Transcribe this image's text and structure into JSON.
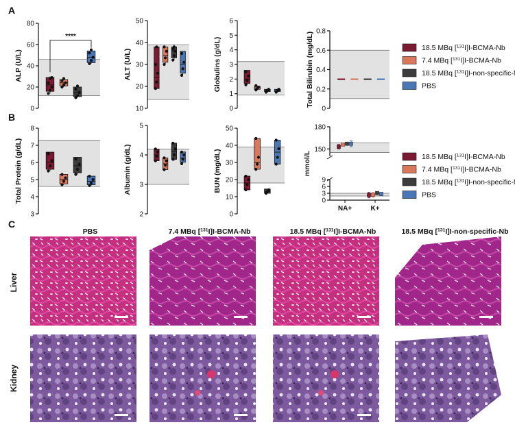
{
  "panel_letters": [
    "A",
    "B",
    "C"
  ],
  "colors": {
    "bcma_18_5": "#7b1a33",
    "bcma_7_4": "#d9785b",
    "nonspecific": "#3c3c3c",
    "pbs": "#4a77b5",
    "reference_band": "#e2e2e2",
    "sig_marker": "#111111"
  },
  "legend_row1": [
    {
      "key": "bcma_18_5",
      "prefix": "18.5 MBq [",
      "sup": "131",
      "suffix": "I]I-BCMA-Nb"
    },
    {
      "key": "bcma_7_4",
      "prefix": "7.4 MBq [",
      "sup": "131",
      "suffix": "I]I-BCMA-Nb"
    },
    {
      "key": "nonspecific",
      "prefix": "18.5 MBq [",
      "sup": "131",
      "suffix": "I]I-non-specific-Nb"
    },
    {
      "key": "pbs",
      "prefix": "PBS",
      "sup": "",
      "suffix": ""
    }
  ],
  "legend_row2": [
    {
      "key": "bcma_18_5",
      "prefix": "18.5 MBq [",
      "sup": "131",
      "suffix": "I]I-BCMA-Nb"
    },
    {
      "key": "bcma_7_4",
      "prefix": "7.4 MBq [",
      "sup": "131",
      "suffix": "I]I-BCMA-Nb"
    },
    {
      "key": "nonspecific",
      "prefix": "18.5 MBq [",
      "sup": "131",
      "suffix": "I]I-non-specific-Nb"
    },
    {
      "key": "pbs",
      "prefix": "PBS",
      "sup": "",
      "suffix": ""
    }
  ],
  "chart_data": [
    {
      "id": "alp",
      "type": "box",
      "ylabel": "ALP (U/L)",
      "ylim": [
        0,
        80
      ],
      "yticks": [
        0,
        20,
        40,
        60,
        80
      ],
      "reference_range": [
        12,
        46
      ],
      "significance": {
        "label": "****",
        "between": [
          0,
          3
        ]
      },
      "series": [
        {
          "key": "bcma_18_5",
          "min": 14,
          "q1": 16,
          "median": 22,
          "q3": 29,
          "max": 30,
          "points": [
            14,
            17,
            20,
            24,
            28,
            29
          ]
        },
        {
          "key": "bcma_7_4",
          "min": 20,
          "q1": 21,
          "median": 24,
          "q3": 27,
          "max": 28,
          "points": [
            20,
            22,
            24,
            26,
            28
          ]
        },
        {
          "key": "nonspecific",
          "min": 10,
          "q1": 11,
          "median": 15,
          "q3": 20,
          "max": 22,
          "points": [
            10,
            12,
            15,
            18,
            21
          ]
        },
        {
          "key": "pbs",
          "min": 42,
          "q1": 43,
          "median": 48,
          "q3": 54,
          "max": 55,
          "points": [
            42,
            45,
            48,
            52,
            55
          ]
        }
      ]
    },
    {
      "id": "alt",
      "type": "box",
      "ylabel": "ALT (U/L)",
      "ylim": [
        10,
        50
      ],
      "yticks": [
        10,
        20,
        30,
        40,
        50
      ],
      "reference_range": [
        14,
        39
      ],
      "series": [
        {
          "key": "bcma_18_5",
          "min": 19,
          "q1": 19,
          "median": 24,
          "q3": 38,
          "max": 38,
          "points": [
            19,
            22,
            26,
            30,
            38
          ]
        },
        {
          "key": "bcma_7_4",
          "min": 30,
          "q1": 31,
          "median": 34,
          "q3": 38,
          "max": 38,
          "points": [
            30,
            33,
            36,
            38
          ]
        },
        {
          "key": "nonspecific",
          "min": 32,
          "q1": 33,
          "median": 36,
          "q3": 38,
          "max": 39,
          "points": [
            32,
            34,
            36,
            37,
            38
          ]
        },
        {
          "key": "pbs",
          "min": 25,
          "q1": 26,
          "median": 30,
          "q3": 36,
          "max": 36,
          "points": [
            25,
            28,
            31,
            35
          ]
        }
      ]
    },
    {
      "id": "glob",
      "type": "box",
      "ylabel": "Globulins (g/dL)",
      "ylim": [
        0,
        6
      ],
      "yticks": [
        0,
        1,
        2,
        3,
        4,
        5,
        6
      ],
      "reference_range": [
        0.9,
        3.2
      ],
      "series": [
        {
          "key": "bcma_18_5",
          "min": 1.6,
          "q1": 1.7,
          "median": 2.0,
          "q3": 2.6,
          "max": 2.6,
          "points": [
            1.6,
            1.9,
            2.2,
            2.5
          ]
        },
        {
          "key": "bcma_7_4",
          "min": 1.25,
          "q1": 1.3,
          "median": 1.4,
          "q3": 1.5,
          "max": 1.55,
          "points": [
            1.25,
            1.35,
            1.45,
            1.55
          ]
        },
        {
          "key": "nonspecific",
          "min": 1.1,
          "q1": 1.15,
          "median": 1.2,
          "q3": 1.3,
          "max": 1.3,
          "points": [
            1.1,
            1.2,
            1.3
          ]
        },
        {
          "key": "pbs",
          "min": 1.1,
          "q1": 1.15,
          "median": 1.2,
          "q3": 1.3,
          "max": 1.3,
          "points": [
            1.1,
            1.2,
            1.3
          ]
        }
      ]
    },
    {
      "id": "bili",
      "type": "box",
      "ylabel": "Total Bilirubin (mg/dL)",
      "ylim": [
        0,
        0.8
      ],
      "yticks": [
        0,
        0.2,
        0.4,
        0.6,
        0.8
      ],
      "reference_range": [
        0.1,
        0.6
      ],
      "series": [
        {
          "key": "bcma_18_5",
          "min": 0.3,
          "q1": 0.3,
          "median": 0.3,
          "q3": 0.3,
          "max": 0.3,
          "points": []
        },
        {
          "key": "bcma_7_4",
          "min": 0.3,
          "q1": 0.3,
          "median": 0.3,
          "q3": 0.3,
          "max": 0.3,
          "points": []
        },
        {
          "key": "nonspecific",
          "min": 0.3,
          "q1": 0.3,
          "median": 0.3,
          "q3": 0.3,
          "max": 0.3,
          "points": []
        },
        {
          "key": "pbs",
          "min": 0.3,
          "q1": 0.3,
          "median": 0.3,
          "q3": 0.3,
          "max": 0.3,
          "points": []
        }
      ]
    },
    {
      "id": "tp",
      "type": "box",
      "ylabel": "Total Protein (g/dL)",
      "ylim": [
        3,
        8
      ],
      "yticks": [
        3,
        4,
        5,
        6,
        7,
        8
      ],
      "reference_range": [
        4.6,
        7.3
      ],
      "series": [
        {
          "key": "bcma_18_5",
          "min": 5.5,
          "q1": 5.6,
          "median": 6.0,
          "q3": 6.6,
          "max": 6.6,
          "points": [
            5.5,
            5.8,
            6.1,
            6.5
          ]
        },
        {
          "key": "bcma_7_4",
          "min": 4.7,
          "q1": 4.75,
          "median": 5.0,
          "q3": 5.3,
          "max": 5.3,
          "points": [
            4.7,
            4.9,
            5.1,
            5.3
          ]
        },
        {
          "key": "nonspecific",
          "min": 5.3,
          "q1": 5.4,
          "median": 5.8,
          "q3": 6.3,
          "max": 6.3,
          "points": [
            5.3,
            5.6,
            5.9,
            6.2
          ]
        },
        {
          "key": "pbs",
          "min": 4.65,
          "q1": 4.7,
          "median": 4.9,
          "q3": 5.2,
          "max": 5.2,
          "points": [
            4.65,
            4.8,
            5.0,
            5.2
          ]
        }
      ]
    },
    {
      "id": "alb",
      "type": "box",
      "ylabel": "Albumin (g/dL)",
      "ylim": [
        2,
        5
      ],
      "yticks": [
        2,
        3,
        4,
        5
      ],
      "reference_range": [
        3.0,
        4.2
      ],
      "series": [
        {
          "key": "bcma_18_5",
          "min": 3.8,
          "q1": 3.8,
          "median": 4.0,
          "q3": 4.2,
          "max": 4.2,
          "points": [
            3.8,
            3.95,
            4.1,
            4.2
          ]
        },
        {
          "key": "bcma_7_4",
          "min": 3.5,
          "q1": 3.5,
          "median": 3.7,
          "q3": 3.9,
          "max": 3.9,
          "points": [
            3.5,
            3.65,
            3.8,
            3.9
          ]
        },
        {
          "key": "nonspecific",
          "min": 3.8,
          "q1": 3.85,
          "median": 4.1,
          "q3": 4.4,
          "max": 4.4,
          "points": [
            3.85,
            4.0,
            4.2,
            4.4
          ]
        },
        {
          "key": "pbs",
          "min": 3.7,
          "q1": 3.75,
          "median": 3.9,
          "q3": 4.1,
          "max": 4.1,
          "points": [
            3.7,
            3.85,
            4.0,
            4.1
          ]
        }
      ]
    },
    {
      "id": "bun",
      "type": "box",
      "ylabel": "BUN (mg/dL)",
      "ylim": [
        0,
        50
      ],
      "yticks": [
        0,
        10,
        20,
        30,
        40,
        50
      ],
      "reference_range": [
        18,
        39
      ],
      "series": [
        {
          "key": "bcma_18_5",
          "min": 14,
          "q1": 14,
          "median": 18,
          "q3": 22,
          "max": 22,
          "points": [
            14,
            17,
            20,
            22
          ]
        },
        {
          "key": "bcma_7_4",
          "min": 26,
          "q1": 26,
          "median": 30,
          "q3": 44,
          "max": 44,
          "points": [
            26,
            29,
            33,
            44
          ]
        },
        {
          "key": "nonspecific",
          "min": 12,
          "q1": 12,
          "median": 13,
          "q3": 14.5,
          "max": 14.5,
          "points": [
            12,
            13,
            14
          ]
        },
        {
          "key": "pbs",
          "min": 29,
          "q1": 29,
          "median": 36,
          "q3": 43,
          "max": 43,
          "points": [
            29,
            33,
            38,
            43
          ]
        }
      ]
    },
    {
      "id": "elec",
      "type": "scatter",
      "ylabel": "mmol/L",
      "yticks_upper": [
        150,
        180
      ],
      "ylim_upper": [
        140,
        180
      ],
      "yticks_lower": [
        0,
        3,
        6,
        9
      ],
      "ylim_lower": [
        0,
        9
      ],
      "categories": [
        "NA+",
        "K+"
      ],
      "reference_upper": [
        145,
        158
      ],
      "reference_lower": [
        1.8,
        3.0
      ],
      "series": [
        {
          "key": "bcma_18_5",
          "values": [
            153,
            2.2
          ],
          "err": [
            3,
            1.2
          ]
        },
        {
          "key": "bcma_7_4",
          "values": [
            156,
            2.3
          ],
          "err": [
            2,
            1.0
          ]
        },
        {
          "key": "nonspecific",
          "values": [
            157,
            3.1
          ],
          "err": [
            1,
            0.3
          ]
        },
        {
          "key": "pbs",
          "values": [
            157,
            2.7
          ],
          "err": [
            4,
            0.4
          ]
        }
      ]
    }
  ],
  "panel_c": {
    "columns": [
      {
        "prefix": "PBS",
        "sup": "",
        "suffix": ""
      },
      {
        "prefix": "7.4 MBq [",
        "sup": "131",
        "suffix": "I]I-BCMA-Nb"
      },
      {
        "prefix": "18.5  MBq [",
        "sup": "131",
        "suffix": "I]I-BCMA-Nb"
      },
      {
        "prefix": "18.5  MBq [",
        "sup": "131",
        "suffix": "I]I-non-specific-Nb"
      }
    ],
    "rows": [
      "Liver",
      "Kidney"
    ]
  }
}
